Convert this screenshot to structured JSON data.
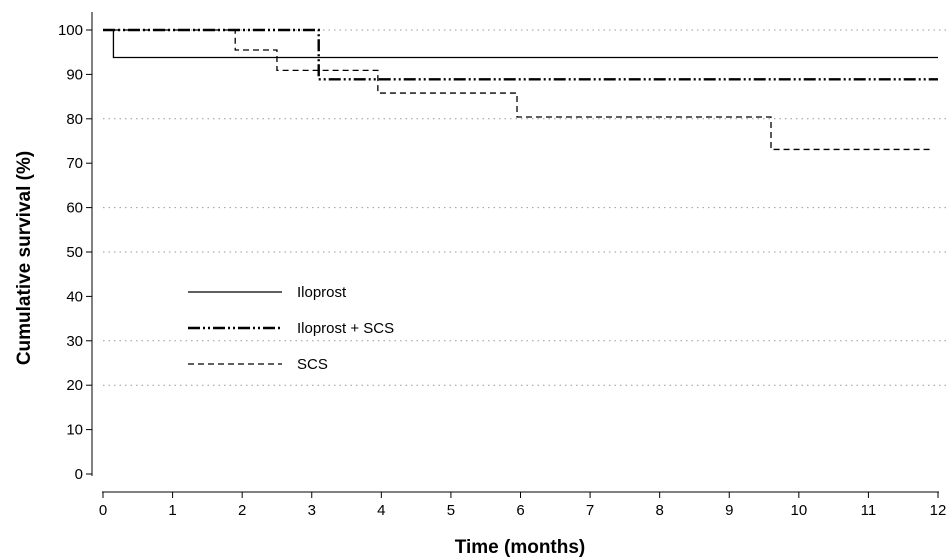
{
  "chart_data": {
    "type": "line",
    "title": "",
    "xlabel": "Time (months)",
    "ylabel": "Cumulative survival (%)",
    "xlim": [
      0,
      12
    ],
    "ylim": [
      0,
      100
    ],
    "x_ticks": [
      0,
      1,
      2,
      3,
      4,
      5,
      6,
      7,
      8,
      9,
      10,
      11,
      12
    ],
    "y_ticks": [
      0,
      10,
      20,
      30,
      40,
      50,
      60,
      70,
      80,
      90,
      100
    ],
    "gridlines": [
      20,
      30,
      50,
      60,
      80,
      100
    ],
    "grid": "dotted horizontal",
    "legend_position": "left-center",
    "step": true,
    "series": [
      {
        "name": "Iloprost",
        "style": "solid",
        "color": "#000000",
        "x": [
          0,
          0.15,
          12
        ],
        "y": [
          100,
          93.8,
          93.8
        ]
      },
      {
        "name": "Iloprost + SCS",
        "style": "dash-dot-dot",
        "color": "#000000",
        "x": [
          0,
          3.1,
          12
        ],
        "y": [
          100,
          88.9,
          88.9
        ]
      },
      {
        "name": "SCS",
        "style": "dashed",
        "color": "#000000",
        "x": [
          0,
          1.9,
          2.5,
          3.95,
          5.95,
          9.6,
          11.9
        ],
        "y": [
          100,
          95.5,
          90.9,
          85.8,
          80.4,
          73.1,
          73.1
        ]
      }
    ]
  }
}
